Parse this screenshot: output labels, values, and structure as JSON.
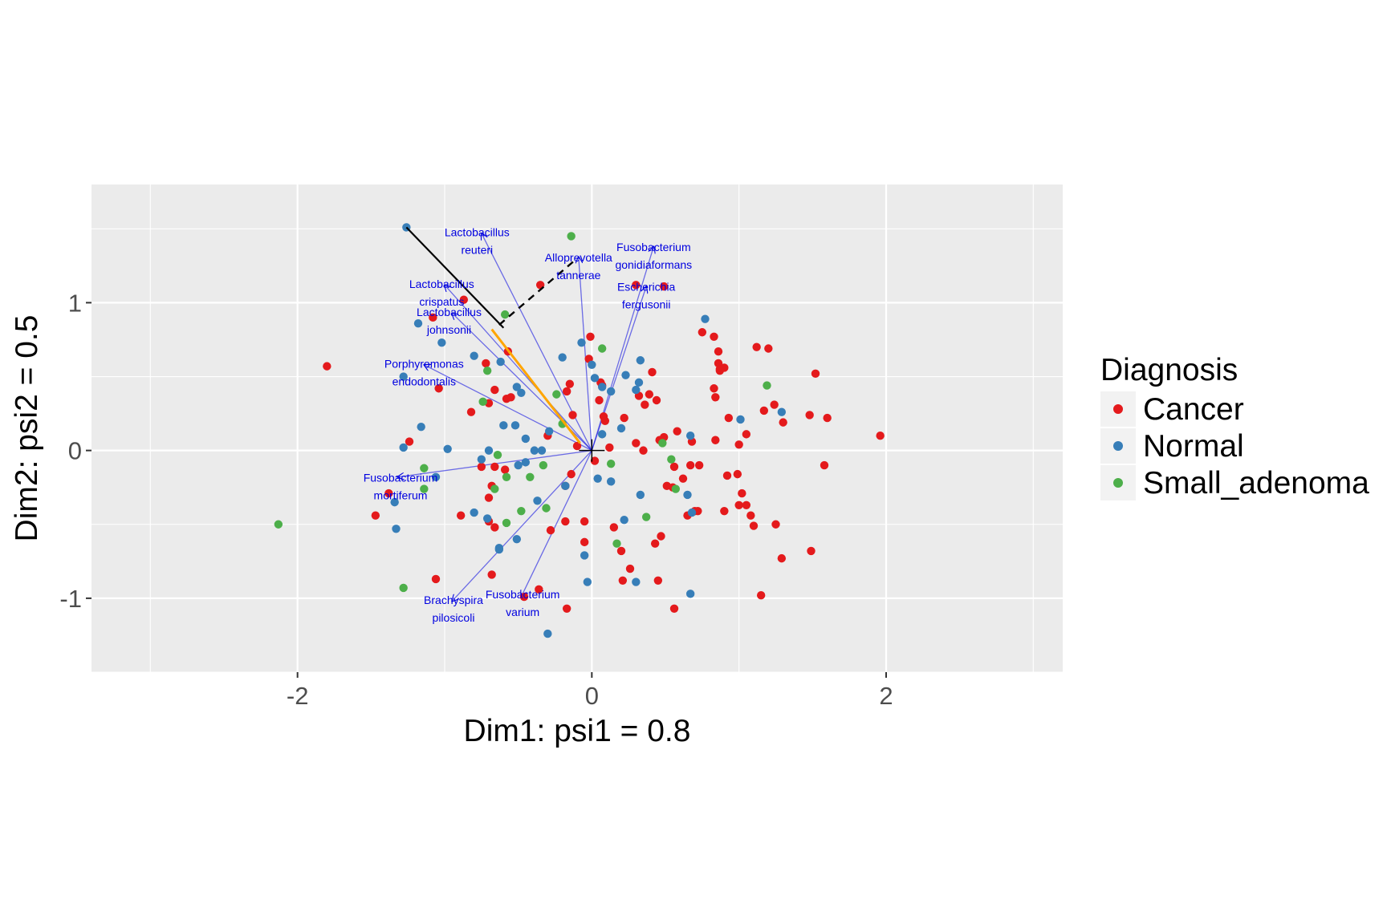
{
  "chart_data": {
    "type": "scatter",
    "title": "",
    "xlabel": "Dim1: psi1 = 0.8",
    "ylabel": "Dim2: psi2 = 0.5",
    "xlim": [
      -3.4,
      3.2
    ],
    "ylim": [
      -1.5,
      1.8
    ],
    "x_ticks": [
      -2,
      0,
      2
    ],
    "x_tick_labels": [
      "-2",
      "0",
      "2"
    ],
    "y_ticks": [
      -1,
      0,
      1
    ],
    "y_tick_labels": [
      "-1",
      "0",
      "1"
    ],
    "grid": true,
    "legend": {
      "title": "Diagnosis",
      "position": "right"
    },
    "colors": {
      "Cancer": "#e41a1c",
      "Normal": "#377eb8",
      "Small_adenoma": "#4daf4a",
      "panel": "#ebebeb",
      "taxa": "#0000e0",
      "highlight": "#ffa500"
    },
    "series": [
      {
        "name": "Cancer",
        "color": "#e41a1c",
        "points": [
          [
            -1.8,
            0.57
          ],
          [
            -1.08,
            0.9
          ],
          [
            -0.87,
            1.02
          ],
          [
            -1.04,
            0.42
          ],
          [
            -1.24,
            0.06
          ],
          [
            -1.38,
            -0.29
          ],
          [
            -1.47,
            -0.44
          ],
          [
            -1.06,
            -0.87
          ],
          [
            -0.89,
            -0.44
          ],
          [
            -0.75,
            -0.11
          ],
          [
            -0.72,
            0.59
          ],
          [
            -0.82,
            0.26
          ],
          [
            -0.7,
            0.32
          ],
          [
            -0.66,
            -0.11
          ],
          [
            -0.7,
            -0.32
          ],
          [
            -0.7,
            -0.48
          ],
          [
            -0.68,
            -0.24
          ],
          [
            -0.68,
            -0.84
          ],
          [
            -0.66,
            -0.52
          ],
          [
            -0.58,
            0.35
          ],
          [
            -0.55,
            0.36
          ],
          [
            -0.59,
            -0.13
          ],
          [
            -0.57,
            0.67
          ],
          [
            -0.66,
            0.41
          ],
          [
            -0.46,
            -0.99
          ],
          [
            -0.36,
            -0.94
          ],
          [
            -0.35,
            1.12
          ],
          [
            -0.3,
            0.1
          ],
          [
            -0.28,
            -0.54
          ],
          [
            -0.18,
            -0.48
          ],
          [
            -0.17,
            0.4
          ],
          [
            -0.15,
            0.45
          ],
          [
            -0.18,
            -0.24
          ],
          [
            -0.13,
            0.24
          ],
          [
            -0.14,
            -0.16
          ],
          [
            -0.1,
            0.03
          ],
          [
            -0.17,
            -1.07
          ],
          [
            -0.01,
            0.77
          ],
          [
            -0.02,
            0.62
          ],
          [
            -0.05,
            -0.62
          ],
          [
            -0.05,
            -0.48
          ],
          [
            0.02,
            -0.07
          ],
          [
            0.05,
            0.34
          ],
          [
            0.06,
            0.46
          ],
          [
            0.07,
            0.44
          ],
          [
            0.09,
            0.2
          ],
          [
            0.08,
            0.23
          ],
          [
            0.12,
            0.02
          ],
          [
            0.15,
            -0.52
          ],
          [
            0.2,
            -0.68
          ],
          [
            0.21,
            -0.88
          ],
          [
            0.22,
            0.22
          ],
          [
            0.26,
            -0.8
          ],
          [
            0.3,
            0.05
          ],
          [
            0.3,
            1.12
          ],
          [
            0.32,
            0.37
          ],
          [
            0.35,
            0.0
          ],
          [
            0.36,
            0.31
          ],
          [
            0.39,
            0.38
          ],
          [
            0.41,
            0.53
          ],
          [
            0.43,
            -0.63
          ],
          [
            0.45,
            -0.88
          ],
          [
            0.44,
            0.34
          ],
          [
            0.46,
            0.07
          ],
          [
            0.47,
            -0.58
          ],
          [
            0.49,
            0.09
          ],
          [
            0.49,
            1.11
          ],
          [
            0.51,
            -0.24
          ],
          [
            0.58,
            0.13
          ],
          [
            0.55,
            -0.25
          ],
          [
            0.56,
            -1.07
          ],
          [
            0.56,
            -0.11
          ],
          [
            0.67,
            -0.1
          ],
          [
            0.62,
            -0.19
          ],
          [
            0.65,
            -0.44
          ],
          [
            0.68,
            0.06
          ],
          [
            0.72,
            -0.41
          ],
          [
            0.73,
            -0.1
          ],
          [
            0.7,
            -0.41
          ],
          [
            0.75,
            0.8
          ],
          [
            0.83,
            0.77
          ],
          [
            0.83,
            0.42
          ],
          [
            0.84,
            0.36
          ],
          [
            0.86,
            0.67
          ],
          [
            0.86,
            0.59
          ],
          [
            0.84,
            0.07
          ],
          [
            0.87,
            0.55
          ],
          [
            0.87,
            0.54
          ],
          [
            0.9,
            0.56
          ],
          [
            0.9,
            -0.41
          ],
          [
            0.92,
            -0.17
          ],
          [
            0.93,
            0.22
          ],
          [
            0.99,
            -0.16
          ],
          [
            1.0,
            -0.37
          ],
          [
            1.0,
            0.04
          ],
          [
            1.02,
            -0.29
          ],
          [
            1.05,
            0.11
          ],
          [
            1.05,
            -0.37
          ],
          [
            1.08,
            -0.44
          ],
          [
            1.1,
            -0.51
          ],
          [
            1.12,
            0.7
          ],
          [
            1.15,
            -0.98
          ],
          [
            1.17,
            0.27
          ],
          [
            1.2,
            0.69
          ],
          [
            1.24,
            0.31
          ],
          [
            1.25,
            -0.5
          ],
          [
            1.29,
            -0.73
          ],
          [
            1.3,
            0.19
          ],
          [
            1.48,
            0.24
          ],
          [
            1.49,
            -0.68
          ],
          [
            1.52,
            0.52
          ],
          [
            1.58,
            -0.1
          ],
          [
            1.6,
            0.22
          ],
          [
            1.96,
            0.1
          ]
        ]
      },
      {
        "name": "Normal",
        "color": "#377eb8",
        "points": [
          [
            -1.26,
            1.51
          ],
          [
            -1.18,
            0.86
          ],
          [
            -1.02,
            0.73
          ],
          [
            -1.28,
            0.5
          ],
          [
            -1.16,
            0.16
          ],
          [
            -1.28,
            0.02
          ],
          [
            -0.98,
            0.01
          ],
          [
            -1.06,
            -0.18
          ],
          [
            -1.34,
            -0.35
          ],
          [
            -1.33,
            -0.53
          ],
          [
            -0.8,
            0.64
          ],
          [
            -0.75,
            -0.06
          ],
          [
            -0.7,
            0.0
          ],
          [
            -0.71,
            -0.46
          ],
          [
            -0.63,
            -0.67
          ],
          [
            -0.62,
            0.6
          ],
          [
            -0.8,
            -0.42
          ],
          [
            -0.6,
            0.17
          ],
          [
            -0.63,
            -0.66
          ],
          [
            -0.51,
            0.43
          ],
          [
            -0.48,
            0.39
          ],
          [
            -0.45,
            0.08
          ],
          [
            -0.52,
            0.17
          ],
          [
            -0.45,
            -0.08
          ],
          [
            -0.51,
            -0.6
          ],
          [
            -0.5,
            -0.1
          ],
          [
            -0.39,
            0.0
          ],
          [
            -0.37,
            -0.34
          ],
          [
            -0.29,
            0.13
          ],
          [
            -0.34,
            0.0
          ],
          [
            -0.2,
            0.63
          ],
          [
            -0.18,
            -0.24
          ],
          [
            -0.07,
            0.73
          ],
          [
            -0.05,
            -0.71
          ],
          [
            -0.03,
            -0.89
          ],
          [
            -0.0,
            0.58
          ],
          [
            0.02,
            0.49
          ],
          [
            0.04,
            -0.19
          ],
          [
            0.07,
            0.43
          ],
          [
            0.13,
            0.4
          ],
          [
            0.07,
            0.11
          ],
          [
            0.13,
            -0.21
          ],
          [
            0.2,
            0.15
          ],
          [
            0.22,
            -0.47
          ],
          [
            0.23,
            0.51
          ],
          [
            0.3,
            0.41
          ],
          [
            0.32,
            0.46
          ],
          [
            0.3,
            -0.89
          ],
          [
            0.33,
            0.61
          ],
          [
            0.33,
            -0.3
          ],
          [
            0.67,
            0.1
          ],
          [
            0.65,
            -0.3
          ],
          [
            0.68,
            -0.42
          ],
          [
            0.67,
            -0.97
          ],
          [
            0.77,
            0.89
          ],
          [
            1.01,
            0.21
          ],
          [
            1.29,
            0.26
          ],
          [
            -0.3,
            -1.24
          ]
        ]
      },
      {
        "name": "Small_adenoma",
        "color": "#4daf4a",
        "points": [
          [
            -2.13,
            -0.5
          ],
          [
            -1.14,
            -0.26
          ],
          [
            -1.14,
            -0.12
          ],
          [
            -1.28,
            -0.93
          ],
          [
            -0.74,
            0.33
          ],
          [
            -0.71,
            0.54
          ],
          [
            -0.66,
            -0.26
          ],
          [
            -0.64,
            -0.03
          ],
          [
            -0.59,
            0.92
          ],
          [
            -0.58,
            -0.18
          ],
          [
            -0.58,
            -0.49
          ],
          [
            -0.48,
            -0.41
          ],
          [
            -0.42,
            -0.18
          ],
          [
            -0.33,
            -0.1
          ],
          [
            -0.31,
            -0.39
          ],
          [
            -0.24,
            0.38
          ],
          [
            -0.2,
            0.18
          ],
          [
            -0.14,
            1.45
          ],
          [
            0.07,
            0.69
          ],
          [
            0.13,
            -0.09
          ],
          [
            0.17,
            -0.63
          ],
          [
            0.37,
            -0.45
          ],
          [
            0.48,
            0.05
          ],
          [
            0.54,
            -0.06
          ],
          [
            0.57,
            -0.26
          ],
          [
            1.19,
            0.44
          ]
        ]
      }
    ],
    "taxa_arrows": [
      {
        "label_lines": [
          "Lactobacillus",
          "reuteri"
        ],
        "tip": [
          -0.75,
          1.47
        ],
        "label_at": [
          -0.78,
          1.45
        ]
      },
      {
        "label_lines": [
          "Alloprevotella",
          "tannerae"
        ],
        "tip": [
          -0.09,
          1.31
        ],
        "label_at": [
          -0.09,
          1.28
        ]
      },
      {
        "label_lines": [
          "Fusobacterium",
          "gonidiaformans"
        ],
        "tip": [
          0.42,
          1.38
        ],
        "label_at": [
          0.42,
          1.35
        ]
      },
      {
        "label_lines": [
          "Escherichia",
          "fergusonii"
        ],
        "tip": [
          0.37,
          1.11
        ],
        "label_at": [
          0.37,
          1.08
        ]
      },
      {
        "label_lines": [
          "Lactobacillus",
          "crispatus"
        ],
        "tip": [
          -1.0,
          1.12
        ],
        "label_at": [
          -1.02,
          1.1
        ]
      },
      {
        "label_lines": [
          "Lactobacillus",
          "johnsonii"
        ],
        "tip": [
          -0.95,
          0.93
        ],
        "label_at": [
          -0.97,
          0.91
        ]
      },
      {
        "label_lines": [
          "Porphyromonas",
          "endodontalis"
        ],
        "tip": [
          -1.14,
          0.58
        ],
        "label_at": [
          -1.14,
          0.56
        ]
      },
      {
        "label_lines": [
          "Fusobacterium",
          "mortiferum"
        ],
        "tip": [
          -1.32,
          -0.18
        ],
        "label_at": [
          -1.3,
          -0.21
        ]
      },
      {
        "label_lines": [
          "Brachyspira",
          "pilosicoli"
        ],
        "tip": [
          -0.95,
          -1.02
        ],
        "label_at": [
          -0.94,
          -1.04
        ]
      },
      {
        "label_lines": [
          "Fusobacterium",
          "varium"
        ],
        "tip": [
          -0.48,
          -0.99
        ],
        "label_at": [
          -0.47,
          -1.0
        ]
      }
    ],
    "extra_segments": [
      {
        "style": "solid-black",
        "from": [
          -0.6,
          0.83
        ],
        "to": [
          -1.26,
          1.51
        ]
      },
      {
        "style": "dashed-black",
        "from": [
          -0.63,
          0.85
        ],
        "to": [
          -0.1,
          1.3
        ]
      },
      {
        "style": "orange",
        "from": [
          -0.08,
          0.05
        ],
        "to": [
          -0.68,
          0.82
        ]
      }
    ]
  }
}
